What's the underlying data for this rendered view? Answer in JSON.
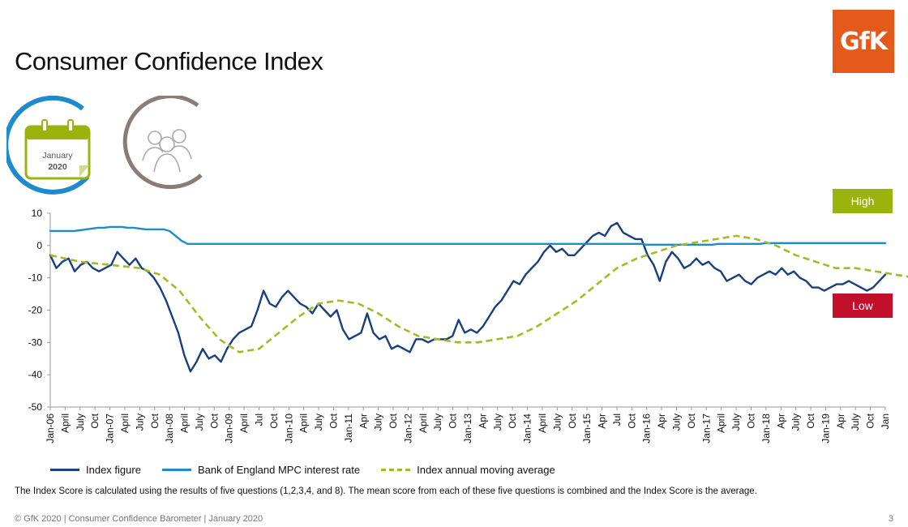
{
  "title": "Consumer Confidence Index",
  "logo_text": "GfK",
  "calendar_icon": {
    "month": "January",
    "year": "2020"
  },
  "badges": {
    "high": "High",
    "low": "Low"
  },
  "colors": {
    "index": "#1a3f7e",
    "boe": "#1f8bcc",
    "moving_avg": "#a3bb22",
    "high": "#9bb40d",
    "low": "#c2102c",
    "logo": "#e55a1b"
  },
  "chart_data": {
    "type": "line",
    "title": "",
    "xlabel": "",
    "ylabel": "",
    "ylim": [
      -50,
      10
    ],
    "yticks": [
      10,
      0,
      -10,
      -20,
      -30,
      -40,
      -50
    ],
    "x_tick_labels": [
      "Jan-06",
      "April",
      "July",
      "Oct",
      "Jan-07",
      "April",
      "July",
      "Oct",
      "Jan-08",
      "April",
      "July",
      "Oct",
      "Jan-09",
      "April",
      "Jul",
      "Oct",
      "Jan-10",
      "April",
      "July",
      "Oct",
      "Jan-11",
      "Apr",
      "July",
      "Oct",
      "Jan-12",
      "April",
      "July",
      "Oct",
      "Jan-13",
      "Apr",
      "July",
      "Oct",
      "Jan-14",
      "April",
      "July",
      "Oct",
      "Jan-15",
      "Apr",
      "Jul",
      "Oct",
      "Jan-16",
      "Apr",
      "July",
      "Oct",
      "Jan-17",
      "April",
      "July",
      "Oct",
      "Jan-18",
      "Apr",
      "July",
      "Oct",
      "Jan-19",
      "Apr",
      "July",
      "Oct",
      "Jan"
    ],
    "legend_position": "bottom",
    "grid": false,
    "series": [
      {
        "name": "Index figure",
        "style": "solid",
        "values": [
          -3,
          -7,
          -5,
          -4,
          -8,
          -6,
          -5,
          -7,
          -8,
          -7,
          -6,
          -2,
          -4,
          -6,
          -4,
          -7,
          -8,
          -10,
          -13,
          -17,
          -22,
          -27,
          -34,
          -39,
          -36,
          -32,
          -35,
          -34,
          -36,
          -32,
          -29,
          -27,
          -26,
          -25,
          -20,
          -14,
          -18,
          -19,
          -16,
          -14,
          -16,
          -18,
          -19,
          -21,
          -18,
          -20,
          -22,
          -20,
          -26,
          -29,
          -28,
          -27,
          -21,
          -27,
          -29,
          -28,
          -32,
          -31,
          -32,
          -33,
          -29,
          -29,
          -30,
          -29,
          -29,
          -29,
          -28,
          -23,
          -27,
          -26,
          -27,
          -25,
          -22,
          -19,
          -17,
          -14,
          -11,
          -12,
          -9,
          -7,
          -5,
          -2,
          0,
          -2,
          -1,
          -3,
          -3,
          -1,
          1,
          3,
          4,
          3,
          6,
          7,
          4,
          3,
          2,
          2,
          -3,
          -6,
          -11,
          -5,
          -2,
          -4,
          -7,
          -6,
          -4,
          -6,
          -5,
          -7,
          -8,
          -11,
          -10,
          -9,
          -11,
          -12,
          -10,
          -9,
          -8,
          -9,
          -7,
          -9,
          -8,
          -10,
          -11,
          -13,
          -13,
          -14,
          -13,
          -12,
          -12,
          -11,
          -12,
          -13,
          -14,
          -13,
          -11,
          -9
        ]
      },
      {
        "name": "Bank of England MPC interest rate",
        "style": "solid",
        "values": [
          4.5,
          4.5,
          4.5,
          4.5,
          4.5,
          4.75,
          5,
          5.25,
          5.5,
          5.5,
          5.75,
          5.75,
          5.75,
          5.5,
          5.5,
          5.25,
          5,
          5,
          5,
          5,
          4.5,
          3,
          1.5,
          0.5,
          0.5,
          0.5,
          0.5,
          0.5,
          0.5,
          0.5,
          0.5,
          0.5,
          0.5,
          0.5,
          0.5,
          0.5,
          0.5,
          0.5,
          0.5,
          0.5,
          0.5,
          0.5,
          0.5,
          0.5,
          0.5,
          0.5,
          0.5,
          0.5,
          0.5,
          0.5,
          0.5,
          0.5,
          0.5,
          0.5,
          0.5,
          0.5,
          0.5,
          0.5,
          0.5,
          0.5,
          0.5,
          0.5,
          0.5,
          0.5,
          0.5,
          0.5,
          0.5,
          0.5,
          0.5,
          0.5,
          0.5,
          0.5,
          0.5,
          0.5,
          0.5,
          0.5,
          0.5,
          0.5,
          0.5,
          0.5,
          0.5,
          0.5,
          0.5,
          0.5,
          0.5,
          0.5,
          0.5,
          0.5,
          0.5,
          0.5,
          0.5,
          0.5,
          0.5,
          0.5,
          0.5,
          0.5,
          0.5,
          0.5,
          0.5,
          0.5,
          0.25,
          0.25,
          0.25,
          0.25,
          0.25,
          0.25,
          0.25,
          0.25,
          0.25,
          0.25,
          0.25,
          0.25,
          0.5,
          0.5,
          0.5,
          0.5,
          0.5,
          0.5,
          0.5,
          0.5,
          0.75,
          0.75,
          0.75,
          0.75,
          0.75,
          0.75,
          0.75,
          0.75,
          0.75,
          0.75,
          0.75,
          0.75,
          0.75,
          0.75,
          0.75,
          0.75,
          0.75,
          0.75,
          0.75,
          0.75,
          0.75
        ]
      },
      {
        "name": "Index annual moving average",
        "style": "dashed",
        "values": [
          [
            0,
            -3
          ],
          [
            6,
            -5
          ],
          [
            12,
            -6
          ],
          [
            18,
            -7
          ],
          [
            22,
            -9
          ],
          [
            26,
            -14
          ],
          [
            30,
            -22
          ],
          [
            34,
            -29
          ],
          [
            38,
            -33
          ],
          [
            42,
            -32
          ],
          [
            46,
            -27
          ],
          [
            50,
            -22
          ],
          [
            54,
            -18
          ],
          [
            58,
            -17
          ],
          [
            62,
            -18
          ],
          [
            66,
            -21
          ],
          [
            70,
            -25
          ],
          [
            74,
            -28
          ],
          [
            78,
            -29
          ],
          [
            82,
            -30
          ],
          [
            86,
            -30
          ],
          [
            90,
            -29
          ],
          [
            94,
            -28
          ],
          [
            98,
            -25
          ],
          [
            102,
            -21
          ],
          [
            106,
            -17
          ],
          [
            110,
            -12
          ],
          [
            114,
            -7
          ],
          [
            118,
            -4
          ],
          [
            122,
            -2
          ],
          [
            126,
            0
          ],
          [
            130,
            1
          ],
          [
            134,
            2
          ],
          [
            138,
            3
          ],
          [
            142,
            2
          ],
          [
            146,
            0
          ],
          [
            150,
            -3
          ],
          [
            154,
            -5
          ],
          [
            158,
            -7
          ],
          [
            162,
            -7
          ],
          [
            166,
            -8
          ],
          [
            170,
            -9
          ],
          [
            174,
            -10
          ],
          [
            178,
            -10
          ],
          [
            182,
            -11
          ],
          [
            186,
            -12
          ],
          [
            190,
            -12
          ],
          [
            194,
            -13
          ]
        ]
      }
    ]
  },
  "legend": {
    "index": "Index figure",
    "boe": "Bank of England MPC interest rate",
    "moving_avg": "Index annual moving average"
  },
  "note": "The Index Score is calculated using the results of five questions (1,2,3,4, and 8). The mean score from each of these five questions is combined and the Index Score is the average.",
  "footer": "© GfK 2020 | Consumer Confidence Barometer | January 2020",
  "page_number": "3"
}
